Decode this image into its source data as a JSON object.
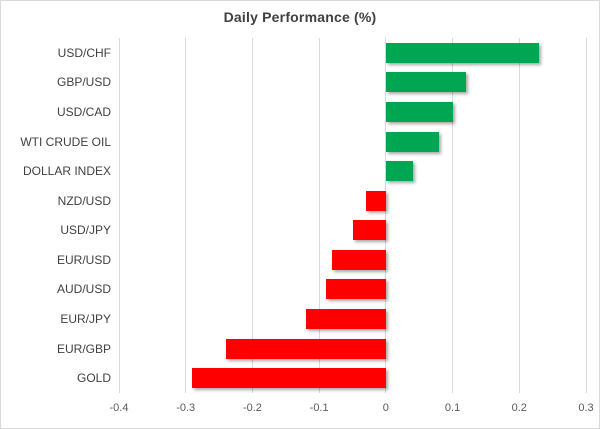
{
  "chart": {
    "border_color": "#D9D9D9",
    "background_color": "#FFFFFF",
    "title_color": "#404040",
    "label_color": "#404040",
    "tick_color": "#595959",
    "gridline_color": "#D9D9D9"
  },
  "chart_data": {
    "type": "bar",
    "orientation": "horizontal",
    "title": "Daily Performance (%)",
    "xlabel": "",
    "ylabel": "",
    "categories": [
      "USD/CHF",
      "GBP/USD",
      "USD/CAD",
      "WTI CRUDE OIL",
      "DOLLAR INDEX",
      "NZD/USD",
      "USD/JPY",
      "EUR/USD",
      "AUD/USD",
      "EUR/JPY",
      "EUR/GBP",
      "GOLD"
    ],
    "values": [
      0.23,
      0.12,
      0.1,
      0.08,
      0.04,
      -0.03,
      -0.05,
      -0.08,
      -0.09,
      -0.12,
      -0.24,
      -0.29
    ],
    "xlim": [
      -0.4,
      0.3
    ],
    "xticks": [
      -0.4,
      -0.3,
      -0.2,
      -0.1,
      0,
      0.1,
      0.2,
      0.3
    ],
    "xtick_labels": [
      "-0.4",
      "-0.3",
      "-0.2",
      "-0.1",
      "0",
      "0.1",
      "0.2",
      "0.3"
    ],
    "grid": true,
    "legend_position": "none",
    "positive_color": "#00A651",
    "negative_color": "#FF0000"
  }
}
